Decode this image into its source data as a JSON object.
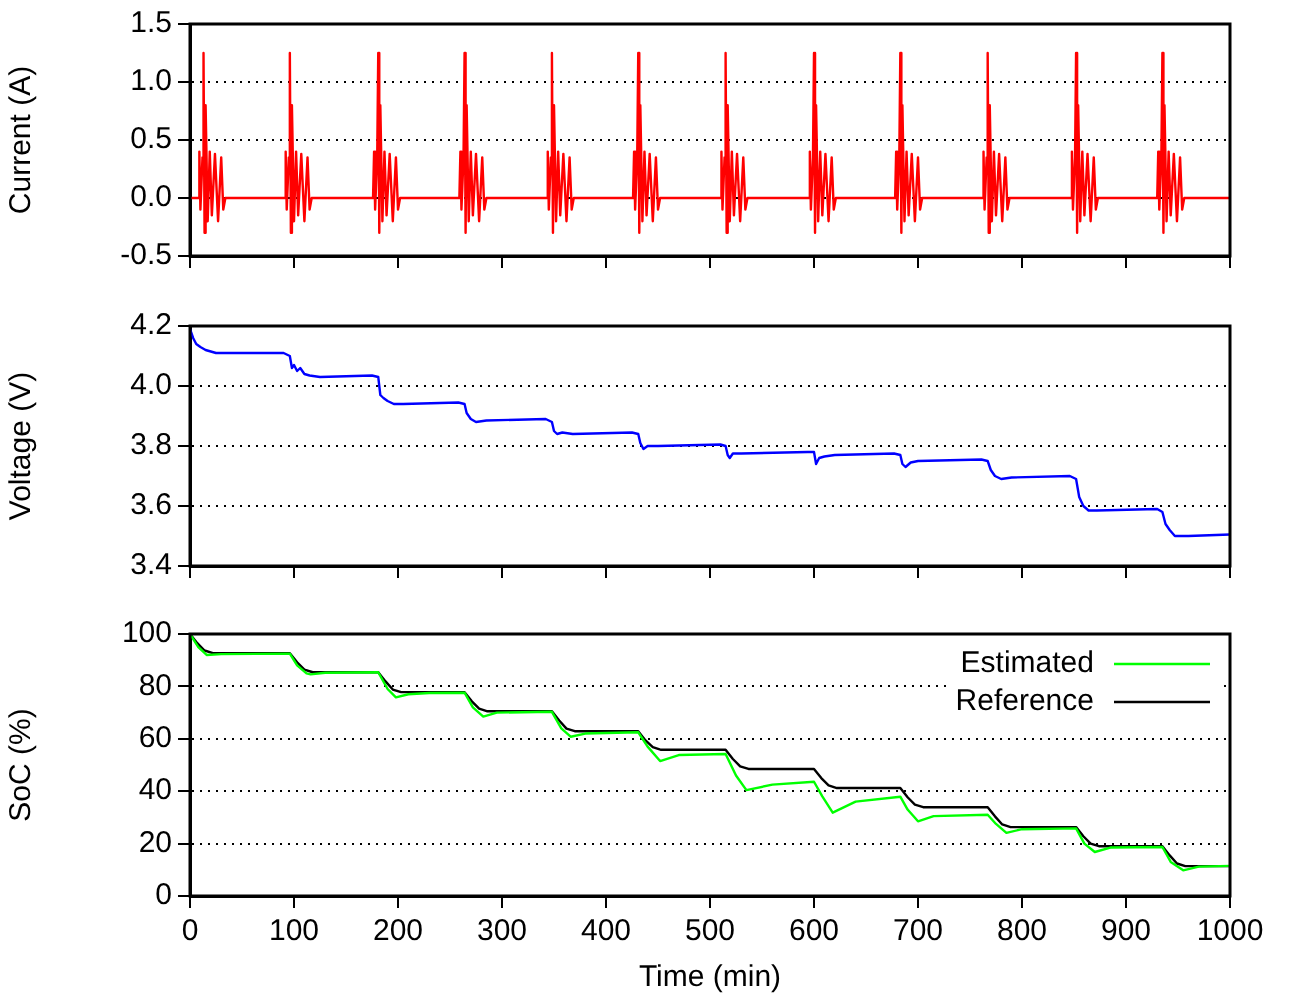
{
  "chart_data": [
    {
      "type": "line",
      "ylabel": "Current (A)",
      "xlim": [
        0,
        1000
      ],
      "xticks": [
        0,
        100,
        200,
        300,
        400,
        500,
        600,
        700,
        800,
        900,
        1000
      ],
      "ylim": [
        -0.5,
        1.5
      ],
      "yticks": [
        -0.5,
        {
          "value": 0,
          "label": "0.0"
        },
        0.5,
        {
          "value": 1,
          "label": "1.0"
        },
        1.5
      ],
      "grid": "y",
      "legend": false,
      "tick_labels": "y",
      "marker": "none",
      "line_style": "solid",
      "series": [
        {
          "color": "#ff0000",
          "x": [
            0,
            8,
            9,
            10,
            12,
            13,
            14,
            15,
            17,
            19,
            21,
            24,
            27,
            30,
            32,
            34,
            91,
            92,
            93,
            95,
            96,
            97,
            98,
            100,
            102,
            104,
            107,
            110,
            113,
            115,
            117,
            176,
            177,
            178,
            180,
            181,
            182,
            183,
            185,
            187,
            189,
            192,
            195,
            198,
            200,
            202,
            259,
            260,
            261,
            263,
            264,
            265,
            266,
            268,
            270,
            272,
            275,
            278,
            281,
            283,
            285,
            343,
            344,
            345,
            347,
            348,
            349,
            350,
            352,
            354,
            356,
            359,
            362,
            365,
            367,
            369,
            426,
            427,
            428,
            430,
            431,
            432,
            433,
            435,
            437,
            439,
            442,
            445,
            448,
            450,
            452,
            510,
            511,
            512,
            514,
            515,
            516,
            517,
            519,
            521,
            523,
            526,
            529,
            532,
            534,
            536,
            595,
            596,
            597,
            599,
            600,
            601,
            602,
            604,
            606,
            608,
            611,
            614,
            617,
            619,
            621,
            678,
            679,
            680,
            682,
            683,
            684,
            685,
            687,
            689,
            691,
            694,
            697,
            700,
            702,
            704,
            762,
            763,
            764,
            766,
            767,
            768,
            769,
            771,
            773,
            775,
            778,
            781,
            784,
            786,
            788,
            847,
            848,
            849,
            851,
            852,
            853,
            854,
            856,
            858,
            860,
            863,
            866,
            869,
            871,
            873,
            930,
            931,
            932,
            934,
            935,
            936,
            937,
            939,
            941,
            943,
            946,
            949,
            952,
            954,
            956,
            1000
          ],
          "values": [
            0,
            0,
            0.4,
            -0.1,
            0.35,
            1.25,
            -0.3,
            0.8,
            -0.2,
            0.4,
            -0.15,
            0.38,
            -0.2,
            0.35,
            -0.1,
            0,
            0,
            0.4,
            -0.1,
            0.35,
            1.25,
            -0.3,
            0.8,
            -0.2,
            0.4,
            -0.15,
            0.38,
            -0.2,
            0.35,
            -0.1,
            0,
            0,
            0.4,
            -0.1,
            0.35,
            1.25,
            -0.3,
            0.8,
            -0.2,
            0.4,
            -0.15,
            0.38,
            -0.2,
            0.35,
            -0.1,
            0,
            0,
            0.4,
            -0.1,
            0.35,
            1.25,
            -0.3,
            0.8,
            -0.2,
            0.4,
            -0.15,
            0.38,
            -0.2,
            0.35,
            -0.1,
            0,
            0,
            0.4,
            -0.1,
            0.35,
            1.25,
            -0.3,
            0.8,
            -0.2,
            0.4,
            -0.15,
            0.38,
            -0.2,
            0.35,
            -0.1,
            0,
            0,
            0.4,
            -0.1,
            0.35,
            1.25,
            -0.3,
            0.8,
            -0.2,
            0.4,
            -0.15,
            0.38,
            -0.2,
            0.35,
            -0.1,
            0,
            0,
            0.4,
            -0.1,
            0.35,
            1.25,
            -0.3,
            0.8,
            -0.2,
            0.4,
            -0.15,
            0.38,
            -0.2,
            0.35,
            -0.1,
            0,
            0,
            0.4,
            -0.1,
            0.35,
            1.25,
            -0.3,
            0.8,
            -0.2,
            0.4,
            -0.15,
            0.38,
            -0.2,
            0.35,
            -0.1,
            0,
            0,
            0.4,
            -0.1,
            0.35,
            1.25,
            -0.3,
            0.8,
            -0.2,
            0.4,
            -0.15,
            0.38,
            -0.2,
            0.35,
            -0.1,
            0,
            0,
            0.4,
            -0.1,
            0.35,
            1.25,
            -0.3,
            0.8,
            -0.2,
            0.4,
            -0.15,
            0.38,
            -0.2,
            0.35,
            -0.1,
            0,
            0,
            0.4,
            -0.1,
            0.35,
            1.25,
            -0.3,
            0.8,
            -0.2,
            0.4,
            -0.15,
            0.38,
            -0.2,
            0.35,
            -0.1,
            0,
            0,
            0.4,
            -0.1,
            0.35,
            1.25,
            -0.3,
            0.8,
            -0.2,
            0.4,
            -0.15,
            0.38,
            -0.2,
            0.35,
            -0.1,
            0,
            0
          ]
        }
      ]
    },
    {
      "type": "line",
      "ylabel": "Voltage (V)",
      "xlim": [
        0,
        1000
      ],
      "xticks": [
        0,
        100,
        200,
        300,
        400,
        500,
        600,
        700,
        800,
        900,
        1000
      ],
      "ylim": [
        3.4,
        4.2
      ],
      "yticks": [
        3.4,
        3.6,
        3.8,
        {
          "value": 4,
          "label": "4.0"
        },
        4.2
      ],
      "grid": "y",
      "legend": false,
      "tick_labels": "y",
      "marker": "none",
      "line_style": "solid",
      "series": [
        {
          "color": "#0000ff",
          "x": [
            0,
            3,
            6,
            10,
            15,
            25,
            90,
            96,
            98,
            100,
            103,
            106,
            110,
            115,
            125,
            175,
            181,
            183,
            186,
            190,
            196,
            205,
            258,
            264,
            266,
            270,
            275,
            285,
            342,
            348,
            350,
            353,
            358,
            368,
            425,
            431,
            433,
            436,
            440,
            450,
            510,
            515,
            517,
            519,
            522,
            530,
            594,
            600,
            602,
            605,
            610,
            620,
            677,
            683,
            685,
            688,
            693,
            700,
            761,
            767,
            770,
            774,
            780,
            790,
            846,
            852,
            855,
            859,
            864,
            872,
            930,
            935,
            938,
            942,
            947,
            960,
            1000
          ],
          "values": [
            4.19,
            4.16,
            4.14,
            4.13,
            4.12,
            4.11,
            4.11,
            4.1,
            4.06,
            4.07,
            4.05,
            4.06,
            4.04,
            4.035,
            4.03,
            4.035,
            4.03,
            3.97,
            3.96,
            3.95,
            3.94,
            3.94,
            3.945,
            3.94,
            3.91,
            3.89,
            3.88,
            3.885,
            3.89,
            3.88,
            3.85,
            3.84,
            3.845,
            3.84,
            3.845,
            3.84,
            3.81,
            3.79,
            3.8,
            3.8,
            3.805,
            3.8,
            3.77,
            3.76,
            3.775,
            3.775,
            3.78,
            3.78,
            3.74,
            3.76,
            3.765,
            3.77,
            3.775,
            3.77,
            3.74,
            3.73,
            3.745,
            3.75,
            3.755,
            3.75,
            3.72,
            3.7,
            3.69,
            3.695,
            3.7,
            3.69,
            3.63,
            3.6,
            3.585,
            3.585,
            3.59,
            3.58,
            3.54,
            3.52,
            3.5,
            3.5,
            3.505
          ]
        }
      ]
    },
    {
      "type": "line",
      "xlabel": "Time (min)",
      "ylabel": "SoC (%)",
      "xlim": [
        0,
        1000
      ],
      "xticks": [
        0,
        100,
        200,
        300,
        400,
        500,
        600,
        700,
        800,
        900,
        1000
      ],
      "ylim": [
        0,
        100
      ],
      "yticks": [
        0,
        20,
        40,
        60,
        80,
        100
      ],
      "grid": "y",
      "legend": "top right",
      "marker": "none",
      "line_style": "solid",
      "series": [
        {
          "name": "Estimated",
          "color": "#00ff00",
          "x": [
            0,
            8,
            16,
            30,
            96,
            103,
            112,
            116,
            130,
            181,
            190,
            198,
            210,
            230,
            264,
            272,
            282,
            295,
            348,
            357,
            366,
            380,
            431,
            440,
            452,
            470,
            515,
            525,
            535,
            560,
            600,
            608,
            618,
            640,
            683,
            690,
            700,
            715,
            767,
            775,
            785,
            800,
            852,
            860,
            870,
            885,
            935,
            943,
            955,
            970,
            1000
          ],
          "values": [
            100,
            95,
            92,
            92.3,
            92.5,
            88,
            85,
            84.6,
            85.2,
            85.4,
            79,
            75.8,
            77,
            77.5,
            77.6,
            72,
            68.5,
            70,
            70.3,
            64,
            60.8,
            62,
            62.5,
            57,
            51.5,
            53.8,
            54.2,
            46,
            40.4,
            42.5,
            43.6,
            38,
            31.8,
            36,
            37.9,
            33,
            28.5,
            30.5,
            31,
            27.5,
            24.1,
            25.5,
            25.8,
            20,
            16.8,
            18.5,
            18.7,
            13,
            9.8,
            11.2,
            11.5
          ]
        },
        {
          "name": "Reference",
          "color": "#000000",
          "x": [
            0,
            7,
            14,
            22,
            96,
            103,
            110,
            118,
            181,
            188,
            195,
            203,
            264,
            271,
            278,
            286,
            348,
            355,
            362,
            370,
            431,
            438,
            445,
            453,
            515,
            522,
            529,
            537,
            600,
            607,
            614,
            622,
            683,
            690,
            697,
            705,
            767,
            774,
            781,
            789,
            852,
            859,
            866,
            874,
            935,
            942,
            949,
            957,
            1000
          ],
          "values": [
            100,
            96.5,
            93.7,
            92.7,
            92.7,
            89.2,
            86.4,
            85.4,
            85.4,
            81.9,
            78.8,
            77.8,
            77.8,
            74.3,
            71.5,
            70.5,
            70.5,
            67,
            63.9,
            62.9,
            62.9,
            59.4,
            56.8,
            55.8,
            55.8,
            52.3,
            49.5,
            48.5,
            48.5,
            45,
            42.2,
            41.2,
            41.2,
            37.7,
            34.9,
            33.9,
            33.9,
            30.4,
            27.3,
            26.3,
            26.3,
            22.8,
            20,
            19,
            19,
            15.5,
            12.4,
            11.4,
            11.4
          ]
        }
      ]
    }
  ]
}
